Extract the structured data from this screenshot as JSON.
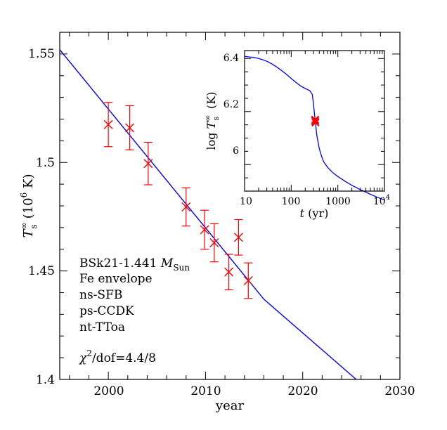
{
  "chart_data": [
    {
      "type": "scatter",
      "xlabel": "year",
      "ylabel_main": "T",
      "ylabel_sup": "∞",
      "ylabel_sub": "s",
      "ylabel_units": "(10",
      "ylabel_units_exp": "6",
      "ylabel_units_tail": " K)",
      "xlim": [
        1995,
        2030
      ],
      "ylim": [
        1.4,
        1.56
      ],
      "x_ticks": [
        {
          "v": 2000,
          "label": "2000"
        },
        {
          "v": 2010,
          "label": "2010"
        },
        {
          "v": 2020,
          "label": "2020"
        },
        {
          "v": 2030,
          "label": "2030"
        }
      ],
      "y_ticks": [
        {
          "v": 1.4,
          "label": "1.4"
        },
        {
          "v": 1.45,
          "label": "1.45"
        },
        {
          "v": 1.5,
          "label": "1.5"
        },
        {
          "v": 1.55,
          "label": "1.55"
        }
      ],
      "series": [
        {
          "kind": "model-curve",
          "color": "#0000ff",
          "x": [
            1995,
            2016,
            2025.5
          ],
          "y": [
            1.552,
            1.437,
            1.4
          ]
        },
        {
          "kind": "observations",
          "color": "#ff0000",
          "x": [
            2000.0,
            2002.2,
            2004.1,
            2008.0,
            2009.9,
            2010.9,
            2012.4,
            2013.4,
            2014.4
          ],
          "y": [
            1.5175,
            1.516,
            1.4995,
            1.4795,
            1.469,
            1.463,
            1.4495,
            1.4655,
            1.4455
          ],
          "yerr": [
            0.0102,
            0.0102,
            0.0098,
            0.0088,
            0.009,
            0.0088,
            0.0082,
            0.0082,
            0.0082
          ]
        }
      ],
      "annotations": [
        {
          "text": "BSk21-1.441 ",
          "italic_part": "M",
          "sub_part": "Sun"
        },
        {
          "text": "Fe envelope"
        },
        {
          "text": "ns-SFB"
        },
        {
          "text": "ps-CCDK"
        },
        {
          "text": "nt-TToa"
        },
        {
          "text": "χ",
          "sup_part": "2",
          "tail": "/dof=4.4/8"
        }
      ]
    },
    {
      "type": "line",
      "inset": true,
      "xlabel_italic": "t",
      "xlabel_tail": " (yr)",
      "ylabel_prefix": "log ",
      "ylabel_main": "T",
      "ylabel_sup": "∞",
      "ylabel_sub": "s",
      "ylabel_tail": " (K)",
      "x_scale": "log",
      "xlim": [
        10,
        10000
      ],
      "ylim": [
        5.9,
        6.43
      ],
      "x_ticks": [
        {
          "v": 10,
          "label": "10"
        },
        {
          "v": 100,
          "label": "100"
        },
        {
          "v": 1000,
          "label": "1000"
        },
        {
          "v": 10000,
          "label": "10",
          "sup": "4"
        }
      ],
      "y_ticks": [
        {
          "v": 6.0,
          "label": "6"
        },
        {
          "v": 6.2,
          "label": "6.2"
        },
        {
          "v": 6.4,
          "label": "6.4"
        }
      ],
      "series": [
        {
          "kind": "model-curve",
          "color": "#0000ff",
          "x": [
            10,
            12.6,
            15.8,
            20,
            25,
            31.6,
            40,
            50,
            63,
            80,
            100,
            126,
            158,
            200,
            251,
            283,
            300,
            316,
            335,
            355,
            400,
            450,
            500,
            600,
            700,
            800,
            1000,
            1500,
            2000,
            3000,
            4000,
            5000,
            6000,
            7000,
            8000,
            9000,
            10000
          ],
          "y": [
            6.408,
            6.406,
            6.404,
            6.4,
            6.395,
            6.388,
            6.378,
            6.367,
            6.354,
            6.34,
            6.325,
            6.31,
            6.297,
            6.287,
            6.279,
            6.265,
            6.23,
            6.19,
            6.15,
            6.11,
            6.06,
            6.03,
            6.01,
            5.99,
            5.978,
            5.968,
            5.955,
            5.935,
            5.922,
            5.906,
            5.896,
            5.888,
            5.882,
            5.877,
            5.873,
            5.87,
            5.867
          ]
        },
        {
          "kind": "observations",
          "color": "#ff0000",
          "x": [
            324,
            326,
            328,
            330,
            332
          ],
          "y": [
            6.165,
            6.17,
            6.162,
            6.168,
            6.158
          ]
        }
      ]
    }
  ]
}
